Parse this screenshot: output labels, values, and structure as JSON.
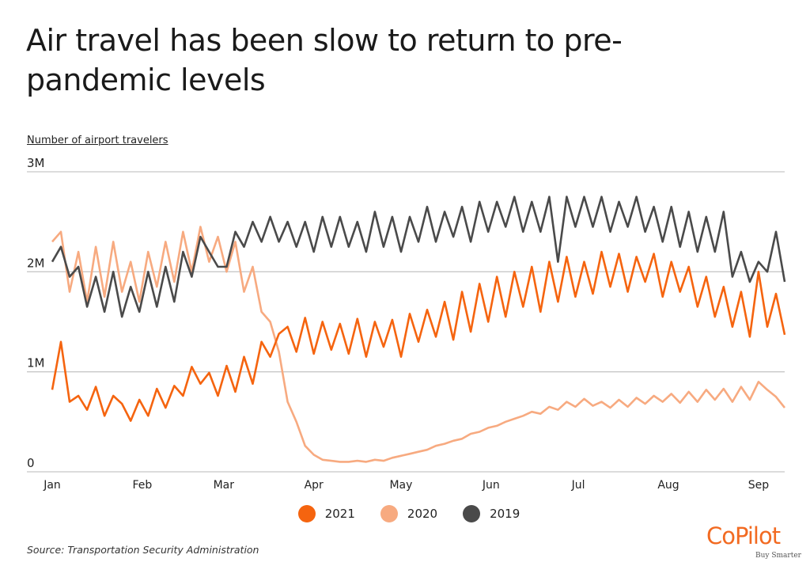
{
  "title": "Air travel has been slow to return to pre-pandemic levels",
  "source": "Source:  Transportation Security Administration",
  "brand": {
    "name": "CoPilot",
    "tagline": "Buy Smarter",
    "color": "#f26a21"
  },
  "chart_data": {
    "type": "line",
    "title": "Air travel has been slow to return to pre-pandemic levels",
    "ylabel": "Number of airport travelers",
    "xlabel": "",
    "ylim": [
      0,
      3000000
    ],
    "yticks": [
      {
        "value": 0,
        "label": "0"
      },
      {
        "value": 1000000,
        "label": "1M"
      },
      {
        "value": 2000000,
        "label": "2M"
      },
      {
        "value": 3000000,
        "label": "3M"
      }
    ],
    "xticks": [
      {
        "day": 1,
        "label": "Jan"
      },
      {
        "day": 32,
        "label": "Feb"
      },
      {
        "day": 60,
        "label": "Mar"
      },
      {
        "day": 91,
        "label": "Apr"
      },
      {
        "day": 121,
        "label": "May"
      },
      {
        "day": 152,
        "label": "Jun"
      },
      {
        "day": 182,
        "label": "Jul"
      },
      {
        "day": 213,
        "label": "Aug"
      },
      {
        "day": 244,
        "label": "Sep"
      }
    ],
    "xlim": [
      1,
      253
    ],
    "grid": true,
    "legend_position": "bottom-center",
    "x_unit": "day of year (every 3 days)",
    "series": [
      {
        "name": "2021",
        "color": "#f5640f",
        "x": [
          1,
          4,
          7,
          10,
          13,
          16,
          19,
          22,
          25,
          28,
          31,
          34,
          37,
          40,
          43,
          46,
          49,
          52,
          55,
          58,
          61,
          64,
          67,
          70,
          73,
          76,
          79,
          82,
          85,
          88,
          91,
          94,
          97,
          100,
          103,
          106,
          109,
          112,
          115,
          118,
          121,
          124,
          127,
          130,
          133,
          136,
          139,
          142,
          145,
          148,
          151,
          154,
          157,
          160,
          163,
          166,
          169,
          172,
          175,
          178,
          181,
          184,
          187,
          190,
          193,
          196,
          199,
          202,
          205,
          208,
          211,
          214,
          217,
          220,
          223,
          226,
          229,
          232,
          235,
          238,
          241,
          244,
          247,
          250,
          253
        ],
        "values": [
          820000,
          1300000,
          700000,
          760000,
          620000,
          850000,
          560000,
          760000,
          680000,
          510000,
          720000,
          560000,
          830000,
          640000,
          860000,
          760000,
          1050000,
          880000,
          990000,
          760000,
          1060000,
          800000,
          1150000,
          880000,
          1300000,
          1150000,
          1380000,
          1450000,
          1200000,
          1540000,
          1180000,
          1500000,
          1220000,
          1480000,
          1180000,
          1530000,
          1150000,
          1500000,
          1250000,
          1520000,
          1150000,
          1580000,
          1300000,
          1620000,
          1350000,
          1700000,
          1320000,
          1800000,
          1400000,
          1880000,
          1500000,
          1950000,
          1550000,
          2000000,
          1650000,
          2050000,
          1600000,
          2100000,
          1700000,
          2150000,
          1750000,
          2100000,
          1780000,
          2200000,
          1850000,
          2180000,
          1800000,
          2150000,
          1900000,
          2180000,
          1750000,
          2100000,
          1800000,
          2050000,
          1650000,
          1950000,
          1550000,
          1850000,
          1450000,
          1800000,
          1350000,
          2000000,
          1450000,
          1780000,
          1370000
        ]
      },
      {
        "name": "2020",
        "color": "#f7aa80",
        "x": [
          1,
          4,
          7,
          10,
          13,
          16,
          19,
          22,
          25,
          28,
          31,
          34,
          37,
          40,
          43,
          46,
          49,
          52,
          55,
          58,
          61,
          64,
          67,
          70,
          73,
          76,
          79,
          82,
          85,
          88,
          91,
          94,
          97,
          100,
          103,
          106,
          109,
          112,
          115,
          118,
          121,
          124,
          127,
          130,
          133,
          136,
          139,
          142,
          145,
          148,
          151,
          154,
          157,
          160,
          163,
          166,
          169,
          172,
          175,
          178,
          181,
          184,
          187,
          190,
          193,
          196,
          199,
          202,
          205,
          208,
          211,
          214,
          217,
          220,
          223,
          226,
          229,
          232,
          235,
          238,
          241,
          244,
          247,
          250,
          253
        ],
        "values": [
          2300000,
          2400000,
          1800000,
          2200000,
          1700000,
          2250000,
          1750000,
          2300000,
          1800000,
          2100000,
          1700000,
          2200000,
          1850000,
          2300000,
          1900000,
          2400000,
          2000000,
          2450000,
          2100000,
          2350000,
          2000000,
          2300000,
          1800000,
          2050000,
          1600000,
          1500000,
          1200000,
          700000,
          500000,
          260000,
          170000,
          120000,
          110000,
          100000,
          100000,
          110000,
          100000,
          120000,
          110000,
          140000,
          160000,
          180000,
          200000,
          220000,
          260000,
          280000,
          310000,
          330000,
          380000,
          400000,
          440000,
          460000,
          500000,
          530000,
          560000,
          600000,
          580000,
          650000,
          620000,
          700000,
          650000,
          730000,
          660000,
          700000,
          640000,
          720000,
          650000,
          740000,
          680000,
          760000,
          700000,
          780000,
          690000,
          800000,
          700000,
          820000,
          720000,
          830000,
          700000,
          850000,
          720000,
          900000,
          820000,
          750000,
          640000
        ]
      },
      {
        "name": "2019",
        "color": "#4a4a4a",
        "x": [
          1,
          4,
          7,
          10,
          13,
          16,
          19,
          22,
          25,
          28,
          31,
          34,
          37,
          40,
          43,
          46,
          49,
          52,
          55,
          58,
          61,
          64,
          67,
          70,
          73,
          76,
          79,
          82,
          85,
          88,
          91,
          94,
          97,
          100,
          103,
          106,
          109,
          112,
          115,
          118,
          121,
          124,
          127,
          130,
          133,
          136,
          139,
          142,
          145,
          148,
          151,
          154,
          157,
          160,
          163,
          166,
          169,
          172,
          175,
          178,
          181,
          184,
          187,
          190,
          193,
          196,
          199,
          202,
          205,
          208,
          211,
          214,
          217,
          220,
          223,
          226,
          229,
          232,
          235,
          238,
          241,
          244,
          247,
          250,
          253
        ],
        "values": [
          2100000,
          2250000,
          1950000,
          2050000,
          1650000,
          1950000,
          1600000,
          2000000,
          1550000,
          1850000,
          1600000,
          2000000,
          1650000,
          2050000,
          1700000,
          2200000,
          1950000,
          2350000,
          2200000,
          2050000,
          2050000,
          2400000,
          2250000,
          2500000,
          2300000,
          2550000,
          2300000,
          2500000,
          2250000,
          2500000,
          2200000,
          2550000,
          2250000,
          2550000,
          2250000,
          2500000,
          2200000,
          2600000,
          2250000,
          2550000,
          2200000,
          2550000,
          2300000,
          2650000,
          2300000,
          2600000,
          2350000,
          2650000,
          2300000,
          2700000,
          2400000,
          2700000,
          2450000,
          2750000,
          2400000,
          2700000,
          2400000,
          2750000,
          2100000,
          2750000,
          2450000,
          2750000,
          2450000,
          2750000,
          2400000,
          2700000,
          2450000,
          2750000,
          2400000,
          2650000,
          2300000,
          2650000,
          2250000,
          2600000,
          2200000,
          2550000,
          2200000,
          2600000,
          1950000,
          2200000,
          1900000,
          2100000,
          2000000,
          2400000,
          1900000
        ]
      }
    ]
  }
}
